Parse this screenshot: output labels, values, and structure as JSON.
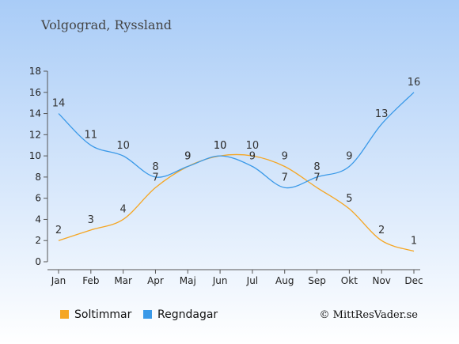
{
  "chart_data": {
    "type": "line",
    "title": "Volgograd, Ryssland",
    "categories": [
      "Jan",
      "Feb",
      "Mar",
      "Apr",
      "Maj",
      "Jun",
      "Jul",
      "Aug",
      "Sep",
      "Okt",
      "Nov",
      "Dec"
    ],
    "series": [
      {
        "name": "Soltimmar",
        "color": "#f5a623",
        "values": [
          2,
          3,
          4,
          7,
          9,
          10,
          10,
          9,
          7,
          5,
          2,
          1
        ]
      },
      {
        "name": "Regndagar",
        "color": "#3a99e8",
        "values": [
          14,
          11,
          10,
          8,
          9,
          10,
          9,
          7,
          8,
          9,
          13,
          16
        ]
      }
    ],
    "ylim": [
      0,
      18
    ],
    "yticks": [
      "0",
      "2",
      "4",
      "6",
      "8",
      "10",
      "12",
      "14",
      "16",
      "18"
    ],
    "grid": false,
    "legend": "bottom-left"
  },
  "credit": "© MittResVader.se",
  "colors": {
    "bg_top": "#a9ccf7",
    "bg_bottom": "#ffffff"
  }
}
